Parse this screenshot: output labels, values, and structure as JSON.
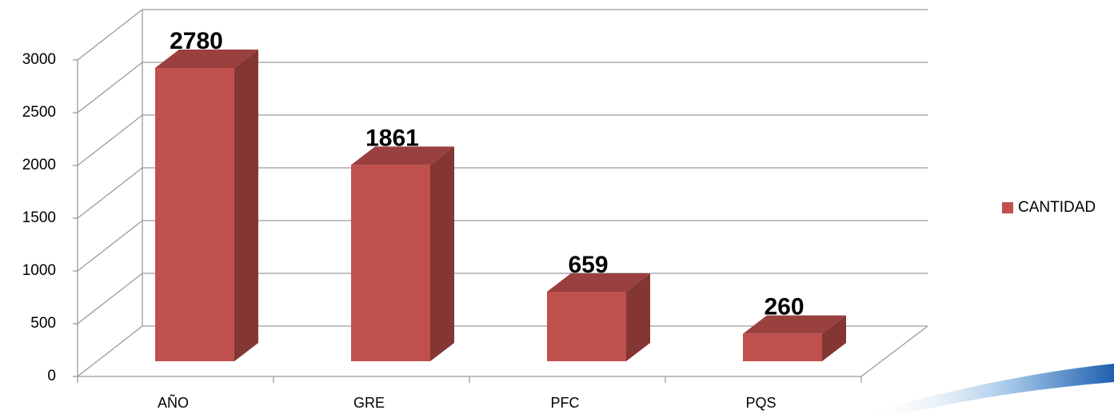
{
  "chart_data": {
    "type": "bar3d",
    "categories": [
      "AÑO",
      "GRE",
      "PFC",
      "PQS"
    ],
    "series": [
      {
        "name": "CANTIDAD",
        "color": "#c0504d",
        "values": [
          2780,
          1861,
          659,
          260
        ]
      }
    ],
    "ylim": [
      0,
      3000
    ],
    "yticks": [
      0,
      500,
      1000,
      1500,
      2000,
      2500,
      3000
    ],
    "grid": true,
    "legend": "right"
  }
}
